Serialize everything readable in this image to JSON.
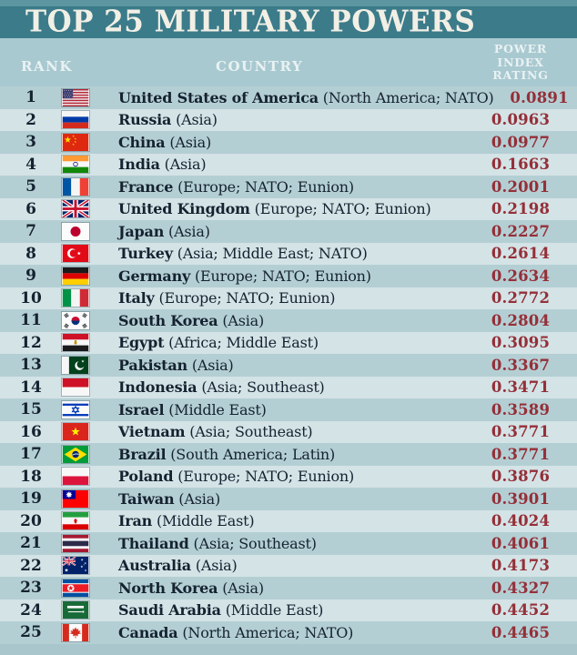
{
  "title": "TOP 25 MILITARY POWERS",
  "header": {
    "rank": "RANK",
    "country": "COUNTRY",
    "rating": "POWER\nINDEX\nRATING"
  },
  "colors": {
    "teal_strip": "#5d96a1",
    "teal_band": "#3b7b8a",
    "header_bg": "#a9c9d1",
    "header_text": "#e9f2f2",
    "title_text": "#f2efe5",
    "row_dark": "#b4cfd4",
    "row_light": "#d4e3e6",
    "footer": "#a9c6cd",
    "ink": "#152230",
    "rating_red": "#942f38"
  },
  "chart_data": {
    "type": "table",
    "title": "TOP 25 MILITARY POWERS",
    "columns": [
      "RANK",
      "COUNTRY",
      "POWER INDEX RATING"
    ],
    "rows": [
      {
        "rank": "1",
        "flag": "us",
        "country": "United States of America",
        "regions": "North America; NATO",
        "rating": "0.0891"
      },
      {
        "rank": "2",
        "flag": "russia",
        "country": "Russia",
        "regions": "Asia",
        "rating": "0.0963"
      },
      {
        "rank": "3",
        "flag": "china",
        "country": "China",
        "regions": "Asia",
        "rating": "0.0977"
      },
      {
        "rank": "4",
        "flag": "india",
        "country": "India",
        "regions": "Asia",
        "rating": "0.1663"
      },
      {
        "rank": "5",
        "flag": "france",
        "country": "France",
        "regions": "Europe; NATO; Eunion",
        "rating": "0.2001"
      },
      {
        "rank": "6",
        "flag": "uk",
        "country": "United Kingdom",
        "regions": "Europe; NATO; Eunion",
        "rating": "0.2198"
      },
      {
        "rank": "7",
        "flag": "japan",
        "country": "Japan",
        "regions": "Asia",
        "rating": "0.2227"
      },
      {
        "rank": "8",
        "flag": "turkey",
        "country": "Turkey",
        "regions": "Asia; Middle East; NATO",
        "rating": "0.2614"
      },
      {
        "rank": "9",
        "flag": "germany",
        "country": "Germany",
        "regions": "Europe; NATO; Eunion",
        "rating": "0.2634"
      },
      {
        "rank": "10",
        "flag": "italy",
        "country": "Italy",
        "regions": "Europe; NATO; Eunion",
        "rating": "0.2772"
      },
      {
        "rank": "11",
        "flag": "south-korea",
        "country": "South Korea",
        "regions": "Asia",
        "rating": "0.2804"
      },
      {
        "rank": "12",
        "flag": "egypt",
        "country": "Egypt",
        "regions": "Africa; Middle East",
        "rating": "0.3095"
      },
      {
        "rank": "13",
        "flag": "pakistan",
        "country": "Pakistan",
        "regions": "Asia",
        "rating": "0.3367"
      },
      {
        "rank": "14",
        "flag": "indonesia",
        "country": "Indonesia",
        "regions": "Asia; Southeast",
        "rating": "0.3471"
      },
      {
        "rank": "15",
        "flag": "israel",
        "country": "Israel",
        "regions": "Middle East",
        "rating": "0.3589"
      },
      {
        "rank": "16",
        "flag": "vietnam",
        "country": "Vietnam",
        "regions": "Asia; Southeast",
        "rating": "0.3771"
      },
      {
        "rank": "17",
        "flag": "brazil",
        "country": "Brazil",
        "regions": "South America; Latin",
        "rating": "0.3771"
      },
      {
        "rank": "18",
        "flag": "poland",
        "country": "Poland",
        "regions": "Europe; NATO; Eunion",
        "rating": "0.3876"
      },
      {
        "rank": "19",
        "flag": "taiwan",
        "country": "Taiwan",
        "regions": "Asia",
        "rating": "0.3901"
      },
      {
        "rank": "20",
        "flag": "iran",
        "country": "Iran",
        "regions": "Middle East",
        "rating": "0.4024"
      },
      {
        "rank": "21",
        "flag": "thailand",
        "country": "Thailand",
        "regions": "Asia; Southeast",
        "rating": "0.4061"
      },
      {
        "rank": "22",
        "flag": "australia",
        "country": "Australia",
        "regions": "Asia",
        "rating": "0.4173"
      },
      {
        "rank": "23",
        "flag": "north-korea",
        "country": "North Korea",
        "regions": "Asia",
        "rating": "0.4327"
      },
      {
        "rank": "24",
        "flag": "saudi-arabia",
        "country": "Saudi Arabia",
        "regions": "Middle East",
        "rating": "0.4452"
      },
      {
        "rank": "25",
        "flag": "canada",
        "country": "Canada",
        "regions": "North America; NATO",
        "rating": "0.4465"
      }
    ]
  }
}
